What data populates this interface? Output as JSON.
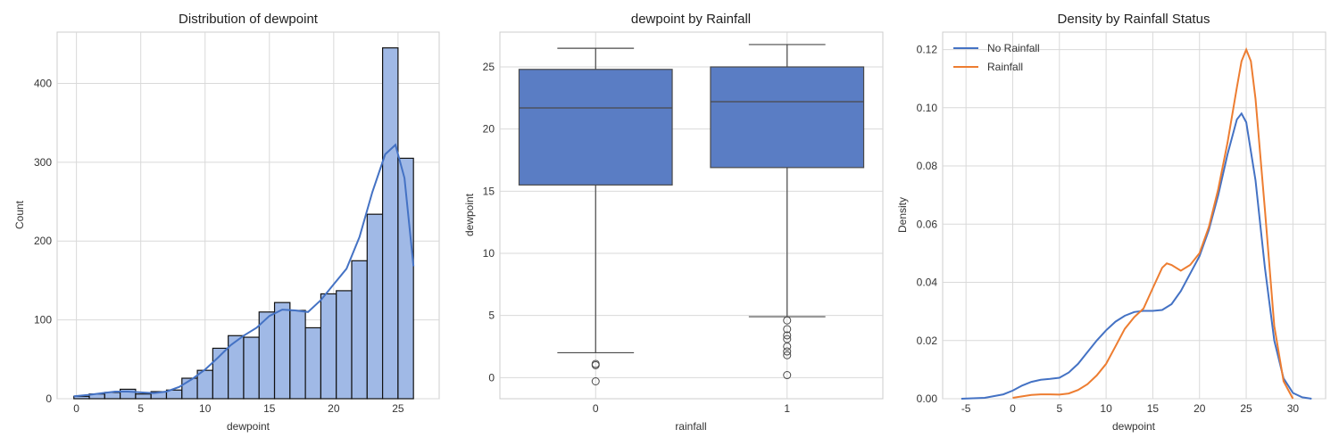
{
  "chart_data": [
    {
      "type": "bar",
      "title": "Distribution of dewpoint",
      "xlabel": "dewpoint",
      "ylabel": "Count",
      "xlim": [
        -1.5,
        28.2
      ],
      "ylim": [
        0,
        465
      ],
      "xticks": [
        0,
        5,
        10,
        15,
        20,
        25
      ],
      "yticks": [
        0,
        100,
        200,
        300,
        400
      ],
      "grid": true,
      "colors": {
        "bar": "#a0b9e6",
        "edge": "#111111",
        "kde": "#4472c4"
      },
      "bins": [
        {
          "x0": -0.2,
          "x1": 1.0,
          "count": 3
        },
        {
          "x0": 1.0,
          "x1": 2.2,
          "count": 6
        },
        {
          "x0": 2.2,
          "x1": 3.4,
          "count": 8
        },
        {
          "x0": 3.4,
          "x1": 4.6,
          "count": 12
        },
        {
          "x0": 4.6,
          "x1": 5.8,
          "count": 6
        },
        {
          "x0": 5.8,
          "x1": 7.0,
          "count": 9
        },
        {
          "x0": 7.0,
          "x1": 8.2,
          "count": 11
        },
        {
          "x0": 8.2,
          "x1": 9.4,
          "count": 26
        },
        {
          "x0": 9.4,
          "x1": 10.6,
          "count": 36
        },
        {
          "x0": 10.6,
          "x1": 11.8,
          "count": 64
        },
        {
          "x0": 11.8,
          "x1": 13.0,
          "count": 80
        },
        {
          "x0": 13.0,
          "x1": 14.2,
          "count": 78
        },
        {
          "x0": 14.2,
          "x1": 15.4,
          "count": 110
        },
        {
          "x0": 15.4,
          "x1": 16.6,
          "count": 122
        },
        {
          "x0": 16.6,
          "x1": 17.8,
          "count": 112
        },
        {
          "x0": 17.8,
          "x1": 19.0,
          "count": 90
        },
        {
          "x0": 19.0,
          "x1": 20.2,
          "count": 133
        },
        {
          "x0": 20.2,
          "x1": 21.4,
          "count": 137
        },
        {
          "x0": 21.4,
          "x1": 22.6,
          "count": 175
        },
        {
          "x0": 22.6,
          "x1": 23.8,
          "count": 234
        },
        {
          "x0": 23.8,
          "x1": 25.0,
          "count": 445
        },
        {
          "x0": 25.0,
          "x1": 26.2,
          "count": 305
        }
      ],
      "kde": {
        "x": [
          -0.2,
          1,
          2,
          3,
          4,
          5,
          6,
          7,
          8,
          9,
          10,
          11,
          12,
          13,
          14,
          15,
          16,
          17,
          18,
          19,
          20,
          21,
          22,
          23,
          24,
          24.8,
          25.5,
          26.2
        ],
        "y": [
          3,
          5,
          7,
          9,
          9,
          8,
          7,
          9,
          15,
          25,
          37,
          52,
          68,
          80,
          90,
          105,
          113,
          112,
          110,
          125,
          145,
          165,
          205,
          262,
          310,
          322,
          280,
          168
        ]
      }
    },
    {
      "type": "box",
      "title": "dewpoint by Rainfall",
      "xlabel": "rainfall",
      "ylabel": "dewpoint",
      "ylim": [
        -1.7,
        27.8
      ],
      "yticks": [
        0,
        5,
        10,
        15,
        20,
        25
      ],
      "grid": true,
      "colors": {
        "box": "#5a7dc4",
        "line": "#4a4a4a"
      },
      "categories": [
        "0",
        "1"
      ],
      "boxes": [
        {
          "category": "0",
          "whisker_low": 2.0,
          "q1": 15.5,
          "median": 21.7,
          "q3": 24.8,
          "whisker_high": 26.5,
          "outliers": [
            1.0,
            1.1,
            -0.3
          ]
        },
        {
          "category": "1",
          "whisker_low": 4.9,
          "q1": 16.9,
          "median": 22.2,
          "q3": 25.0,
          "whisker_high": 26.8,
          "outliers": [
            4.6,
            3.9,
            3.4,
            3.1,
            2.5,
            2.1,
            1.8,
            0.2
          ]
        }
      ]
    },
    {
      "type": "line",
      "title": "Density by Rainfall Status",
      "xlabel": "dewpoint",
      "ylabel": "Density",
      "xlim": [
        -7.5,
        33.5
      ],
      "ylim": [
        0,
        0.126
      ],
      "xticks": [
        -5,
        0,
        5,
        10,
        15,
        20,
        25,
        30
      ],
      "yticks": [
        0.0,
        0.02,
        0.04,
        0.06,
        0.08,
        0.1,
        0.12
      ],
      "legend": "top-left",
      "grid": true,
      "series": [
        {
          "name": "No Rainfall",
          "color": "#4472c4",
          "x": [
            -5.5,
            -3,
            -1,
            0,
            1,
            2,
            3,
            4,
            5,
            6,
            7,
            8,
            9,
            10,
            11,
            12,
            13,
            14,
            15,
            16,
            17,
            18,
            19,
            20,
            21,
            22,
            23,
            24,
            24.5,
            25,
            26,
            27,
            28,
            29,
            30,
            31,
            32
          ],
          "y": [
            0,
            0.0003,
            0.0015,
            0.0028,
            0.0045,
            0.0058,
            0.0065,
            0.0068,
            0.0072,
            0.009,
            0.012,
            0.016,
            0.02,
            0.0235,
            0.0265,
            0.0285,
            0.0298,
            0.0302,
            0.0302,
            0.0305,
            0.0325,
            0.037,
            0.043,
            0.049,
            0.058,
            0.07,
            0.084,
            0.096,
            0.098,
            0.095,
            0.075,
            0.045,
            0.02,
            0.007,
            0.002,
            0.0005,
            0
          ]
        },
        {
          "name": "Rainfall",
          "color": "#ed7d31",
          "x": [
            0,
            1,
            2,
            3,
            4,
            5,
            6,
            7,
            8,
            9,
            10,
            11,
            12,
            13,
            14,
            15,
            16,
            16.5,
            17,
            18,
            19,
            20,
            21,
            22,
            23,
            24,
            24.5,
            25,
            25.5,
            26,
            27,
            28,
            29,
            30
          ],
          "y": [
            0.0003,
            0.0008,
            0.0013,
            0.0015,
            0.0015,
            0.0014,
            0.0018,
            0.003,
            0.005,
            0.008,
            0.012,
            0.018,
            0.024,
            0.028,
            0.031,
            0.038,
            0.045,
            0.0465,
            0.046,
            0.044,
            0.046,
            0.05,
            0.059,
            0.072,
            0.088,
            0.107,
            0.116,
            0.12,
            0.116,
            0.103,
            0.065,
            0.025,
            0.006,
            0
          ]
        }
      ]
    }
  ]
}
